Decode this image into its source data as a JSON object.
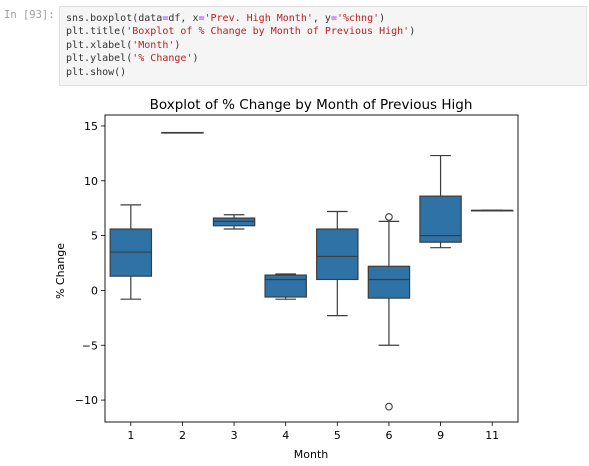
{
  "cell": {
    "prompt": "In [93]:",
    "lines": [
      [
        {
          "t": "sns.boxplot(data",
          "c": "tk-var"
        },
        {
          "t": "=",
          "c": "tk-op"
        },
        {
          "t": "df, x",
          "c": "tk-var"
        },
        {
          "t": "=",
          "c": "tk-op"
        },
        {
          "t": "'Prev. High Month'",
          "c": "tk-str"
        },
        {
          "t": ", y",
          "c": "tk-var"
        },
        {
          "t": "=",
          "c": "tk-op"
        },
        {
          "t": "'%chng'",
          "c": "tk-str"
        },
        {
          "t": ")",
          "c": "tk-var"
        }
      ],
      [
        {
          "t": "plt.title(",
          "c": "tk-var"
        },
        {
          "t": "'Boxplot of % Change by Month of Previous High'",
          "c": "tk-str"
        },
        {
          "t": ")",
          "c": "tk-var"
        }
      ],
      [
        {
          "t": "plt.xlabel(",
          "c": "tk-var"
        },
        {
          "t": "'Month'",
          "c": "tk-str"
        },
        {
          "t": ")",
          "c": "tk-var"
        }
      ],
      [
        {
          "t": "plt.ylabel(",
          "c": "tk-var"
        },
        {
          "t": "'% Change'",
          "c": "tk-str"
        },
        {
          "t": ")",
          "c": "tk-var"
        }
      ],
      [
        {
          "t": "plt.show()",
          "c": "tk-var"
        }
      ]
    ]
  },
  "chart_data": {
    "type": "boxplot",
    "title": "Boxplot of % Change by Month of Previous High",
    "xlabel": "Month",
    "ylabel": "% Change",
    "ylim": [
      -12,
      16
    ],
    "yticks": [
      15,
      10,
      5,
      0,
      -5,
      -10
    ],
    "ytick_labels": [
      "15",
      "10",
      "5",
      "0",
      "−5",
      "−10"
    ],
    "grid": false,
    "box_color": "#2f72a6",
    "categories": [
      "1",
      "2",
      "3",
      "4",
      "5",
      "6",
      "9",
      "11"
    ],
    "boxes": [
      {
        "month": "1",
        "whislo": -0.8,
        "q1": 1.3,
        "med": 3.5,
        "q3": 5.6,
        "whishi": 7.8,
        "fliers": []
      },
      {
        "month": "2",
        "whislo": 14.4,
        "q1": 14.4,
        "med": 14.4,
        "q3": 14.4,
        "whishi": 14.4,
        "fliers": []
      },
      {
        "month": "3",
        "whislo": 5.6,
        "q1": 5.9,
        "med": 6.3,
        "q3": 6.6,
        "whishi": 6.9,
        "fliers": []
      },
      {
        "month": "4",
        "whislo": -0.8,
        "q1": -0.6,
        "med": 1.0,
        "q3": 1.4,
        "whishi": 1.5,
        "fliers": []
      },
      {
        "month": "5",
        "whislo": -2.3,
        "q1": 1.0,
        "med": 3.1,
        "q3": 5.6,
        "whishi": 7.2,
        "fliers": []
      },
      {
        "month": "6",
        "whislo": -5.0,
        "q1": -0.7,
        "med": 1.0,
        "q3": 2.2,
        "whishi": 6.3,
        "fliers": [
          6.7,
          -10.6
        ]
      },
      {
        "month": "9",
        "whislo": 3.9,
        "q1": 4.4,
        "med": 5.0,
        "q3": 8.6,
        "whishi": 12.3,
        "fliers": []
      },
      {
        "month": "11",
        "whislo": 7.3,
        "q1": 7.3,
        "med": 7.3,
        "q3": 7.3,
        "whishi": 7.3,
        "fliers": []
      }
    ]
  }
}
